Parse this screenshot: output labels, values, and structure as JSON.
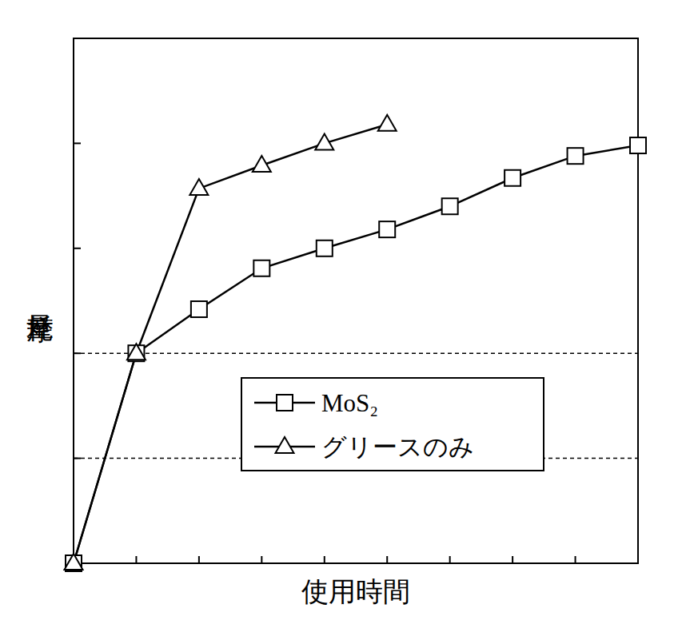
{
  "chart_data": {
    "type": "line",
    "x_label": "使用時間",
    "y_label": "摩耗量",
    "x": [
      0,
      1,
      2,
      3,
      4,
      5,
      6,
      7,
      8,
      9
    ],
    "series": [
      {
        "name": "MoS₂",
        "color": "#000000",
        "marker": "square",
        "line_style": "solid",
        "values": [
          0,
          2.0,
          2.42,
          2.81,
          3.0,
          3.18,
          3.4,
          3.67,
          3.88,
          3.98
        ]
      },
      {
        "name": "グリースのみ",
        "color": "#000000",
        "marker": "triangle",
        "line_style": "solid",
        "values": [
          0,
          2.0,
          3.57,
          3.79,
          4.0,
          4.18,
          null,
          null,
          null,
          null
        ]
      }
    ],
    "xlim": [
      0,
      9
    ],
    "ylim": [
      0,
      5
    ],
    "xticks": [
      0,
      1,
      2,
      3,
      4,
      5,
      6,
      7,
      8,
      9
    ],
    "yticks": [
      0,
      1,
      2,
      3,
      4
    ],
    "hlines": [
      1,
      2
    ],
    "tick_labels": false,
    "grid": false,
    "legend": "lower right"
  }
}
